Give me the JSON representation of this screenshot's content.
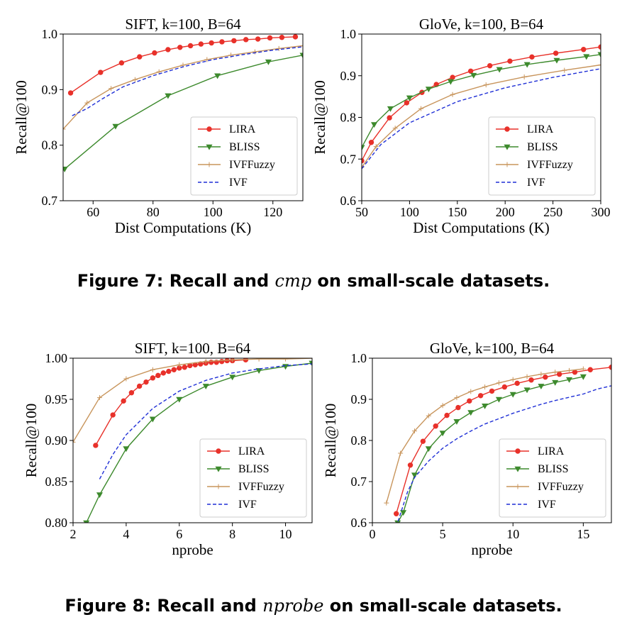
{
  "colors": {
    "LIRA": "#e8312a",
    "BLISS": "#3d8a2d",
    "IVFFuzzy": "#c8955c",
    "IVF": "#1f2fd6"
  },
  "captions": {
    "fig7_prefix": "Figure 7: Recall and ",
    "fig7_italic": "cmp",
    "fig7_suffix": " on small-scale datasets.",
    "fig8_prefix": "Figure 8: Recall and ",
    "fig8_italic": "nprobe",
    "fig8_suffix": " on small-scale datasets."
  },
  "chart_data": [
    {
      "type": "line",
      "title": "SIFT, k=100, B=64",
      "xlabel": "Dist Computations (K)",
      "ylabel": "Recall@100",
      "xlim": [
        50,
        130
      ],
      "ylim": [
        0.7,
        1.0
      ],
      "xticks": [
        60,
        80,
        100,
        120
      ],
      "yticks": [
        0.7,
        0.8,
        0.9,
        1.0
      ],
      "ytick_labels": [
        "0.7",
        "0.8",
        "0.9",
        "1.0"
      ],
      "legend": "bottom-right",
      "series": [
        {
          "name": "LIRA",
          "marker": "circle",
          "x": [
            52.5,
            62.5,
            69.5,
            75.5,
            80.5,
            85,
            89,
            92.5,
            96,
            99.5,
            103,
            107,
            111,
            115,
            119,
            123,
            127.5
          ],
          "y": [
            0.894,
            0.931,
            0.948,
            0.959,
            0.966,
            0.972,
            0.976,
            0.979,
            0.982,
            0.984,
            0.986,
            0.988,
            0.99,
            0.991,
            0.993,
            0.994,
            0.995
          ]
        },
        {
          "name": "BLISS",
          "marker": "triangle",
          "x": [
            50.5,
            67.5,
            85,
            101.5,
            118.5,
            130
          ],
          "y": [
            0.757,
            0.834,
            0.889,
            0.925,
            0.95,
            0.962
          ]
        },
        {
          "name": "IVFFuzzy",
          "marker": "plus",
          "x": [
            50,
            58,
            66,
            74,
            82,
            90,
            98,
            106,
            114,
            122,
            130
          ],
          "y": [
            0.829,
            0.876,
            0.902,
            0.918,
            0.932,
            0.944,
            0.954,
            0.962,
            0.968,
            0.974,
            0.979
          ]
        },
        {
          "name": "IVF",
          "marker": "none",
          "dashed": true,
          "x": [
            53,
            58,
            63,
            70,
            80,
            90,
            100,
            110,
            120,
            130
          ],
          "y": [
            0.853,
            0.866,
            0.883,
            0.905,
            0.925,
            0.941,
            0.954,
            0.963,
            0.971,
            0.977
          ]
        }
      ]
    },
    {
      "type": "line",
      "title": "GloVe, k=100, B=64",
      "xlabel": "Dist Computations (K)",
      "ylabel": "Recall@100",
      "xlim": [
        50,
        300
      ],
      "ylim": [
        0.6,
        1.0
      ],
      "xticks": [
        50,
        100,
        150,
        200,
        250,
        300
      ],
      "yticks": [
        0.6,
        0.7,
        0.8,
        0.9,
        1.0
      ],
      "ytick_labels": [
        "0.6",
        "0.7",
        "0.8",
        "0.9",
        "1.0"
      ],
      "legend": "bottom-right",
      "series": [
        {
          "name": "LIRA",
          "marker": "circle",
          "x": [
            50,
            60,
            79,
            97,
            113,
            128,
            145,
            164,
            184,
            205,
            228,
            253,
            282,
            300
          ],
          "y": [
            0.696,
            0.74,
            0.799,
            0.835,
            0.86,
            0.879,
            0.896,
            0.911,
            0.924,
            0.935,
            0.945,
            0.954,
            0.963,
            0.969
          ]
        },
        {
          "name": "BLISS",
          "marker": "triangle",
          "x": [
            50,
            63,
            80,
            100,
            120,
            143,
            167,
            194,
            223,
            254,
            285,
            300
          ],
          "y": [
            0.728,
            0.783,
            0.821,
            0.847,
            0.868,
            0.886,
            0.901,
            0.915,
            0.927,
            0.937,
            0.946,
            0.951
          ]
        },
        {
          "name": "IVFFuzzy",
          "marker": "plus",
          "x": [
            50,
            65,
            85,
            112,
            145,
            180,
            220,
            262,
            300
          ],
          "y": [
            0.68,
            0.73,
            0.774,
            0.821,
            0.855,
            0.878,
            0.897,
            0.913,
            0.926
          ]
        },
        {
          "name": "IVF",
          "marker": "none",
          "dashed": true,
          "x": [
            50,
            70,
            100,
            150,
            200,
            250,
            300
          ],
          "y": [
            0.677,
            0.735,
            0.787,
            0.838,
            0.871,
            0.896,
            0.917
          ]
        }
      ]
    },
    {
      "type": "line",
      "title": "SIFT, k=100, B=64",
      "xlabel": "nprobe",
      "ylabel": "Recall@100",
      "xlim": [
        2,
        11
      ],
      "ylim": [
        0.8,
        1.0
      ],
      "xticks": [
        2,
        4,
        6,
        8,
        10
      ],
      "yticks": [
        0.8,
        0.85,
        0.9,
        0.95,
        1.0
      ],
      "ytick_labels": [
        "0.80",
        "0.85",
        "0.90",
        "0.95",
        "1.00"
      ],
      "legend": "bottom-right",
      "series": [
        {
          "name": "LIRA",
          "marker": "circle",
          "x": [
            2.85,
            3.5,
            3.9,
            4.2,
            4.5,
            4.75,
            5.0,
            5.2,
            5.4,
            5.6,
            5.8,
            6.0,
            6.2,
            6.4,
            6.6,
            6.8,
            7.0,
            7.2,
            7.4,
            7.6,
            7.8,
            8.0,
            8.5
          ],
          "y": [
            0.894,
            0.931,
            0.948,
            0.958,
            0.966,
            0.971,
            0.976,
            0.979,
            0.982,
            0.984,
            0.986,
            0.988,
            0.989,
            0.991,
            0.992,
            0.993,
            0.994,
            0.995,
            0.995,
            0.996,
            0.997,
            0.997,
            0.998
          ]
        },
        {
          "name": "BLISS",
          "marker": "triangle",
          "x": [
            2.5,
            3.0,
            4.0,
            5.0,
            6.0,
            7.0,
            8.0,
            9.0,
            10.0,
            11.0
          ],
          "y": [
            0.8,
            0.834,
            0.89,
            0.926,
            0.95,
            0.966,
            0.977,
            0.985,
            0.99,
            0.994
          ]
        },
        {
          "name": "IVFFuzzy",
          "marker": "plus",
          "x": [
            2.0,
            3.0,
            4.0,
            5.0,
            6.0,
            7.0,
            8.0,
            9.0,
            10.0,
            11.0
          ],
          "y": [
            0.898,
            0.952,
            0.975,
            0.986,
            0.992,
            0.996,
            0.998,
            0.999,
            0.999,
            1.0
          ]
        },
        {
          "name": "IVF",
          "marker": "none",
          "dashed": true,
          "x": [
            3.0,
            3.5,
            4.0,
            5.0,
            6.0,
            7.0,
            8.0,
            9.0,
            10.0,
            11.0
          ],
          "y": [
            0.853,
            0.883,
            0.907,
            0.939,
            0.96,
            0.973,
            0.982,
            0.987,
            0.991,
            0.993
          ]
        }
      ]
    },
    {
      "type": "line",
      "title": "GloVe, k=100, B=64",
      "xlabel": "nprobe",
      "ylabel": "Recall@100",
      "xlim": [
        0,
        17
      ],
      "ylim": [
        0.6,
        1.0
      ],
      "xticks": [
        0,
        5,
        10,
        15
      ],
      "yticks": [
        0.6,
        0.7,
        0.8,
        0.9,
        1.0
      ],
      "ytick_labels": [
        "0.6",
        "0.7",
        "0.8",
        "0.9",
        "1.0"
      ],
      "legend": "bottom-right",
      "series": [
        {
          "name": "LIRA",
          "marker": "circle",
          "x": [
            1.7,
            2.7,
            3.6,
            4.5,
            5.3,
            6.1,
            6.9,
            7.7,
            8.5,
            9.4,
            10.3,
            11.3,
            12.3,
            13.3,
            14.4,
            15.5,
            17.0
          ],
          "y": [
            0.622,
            0.74,
            0.798,
            0.835,
            0.861,
            0.88,
            0.896,
            0.909,
            0.92,
            0.93,
            0.939,
            0.947,
            0.954,
            0.961,
            0.966,
            0.972,
            0.978
          ]
        },
        {
          "name": "BLISS",
          "marker": "triangle",
          "x": [
            1.8,
            2.2,
            3.0,
            4.0,
            5.0,
            6.0,
            7.0,
            8.0,
            9.0,
            10.0,
            11.0,
            12.0,
            13.0,
            14.0,
            15.0
          ],
          "y": [
            0.6,
            0.625,
            0.716,
            0.78,
            0.818,
            0.846,
            0.868,
            0.884,
            0.9,
            0.912,
            0.923,
            0.932,
            0.941,
            0.948,
            0.955
          ]
        },
        {
          "name": "IVFFuzzy",
          "marker": "plus",
          "x": [
            1.0,
            2.0,
            3.0,
            4.0,
            5.0,
            6.0,
            7.0,
            8.0,
            9.0,
            10.0,
            11.0,
            12.0,
            13.0,
            14.0,
            15.0
          ],
          "y": [
            0.648,
            0.769,
            0.823,
            0.86,
            0.885,
            0.904,
            0.919,
            0.93,
            0.94,
            0.948,
            0.955,
            0.961,
            0.966,
            0.97,
            0.974
          ]
        },
        {
          "name": "IVF",
          "marker": "none",
          "dashed": true,
          "x": [
            1.7,
            2.5,
            3.0,
            4.0,
            5.0,
            6.0,
            7.0,
            8.0,
            9.0,
            10.0,
            11.0,
            12.0,
            13.0,
            14.0,
            15.0,
            16.0,
            17.0
          ],
          "y": [
            0.59,
            0.675,
            0.71,
            0.75,
            0.781,
            0.804,
            0.823,
            0.84,
            0.853,
            0.866,
            0.877,
            0.888,
            0.897,
            0.905,
            0.913,
            0.925,
            0.933
          ]
        }
      ]
    }
  ]
}
